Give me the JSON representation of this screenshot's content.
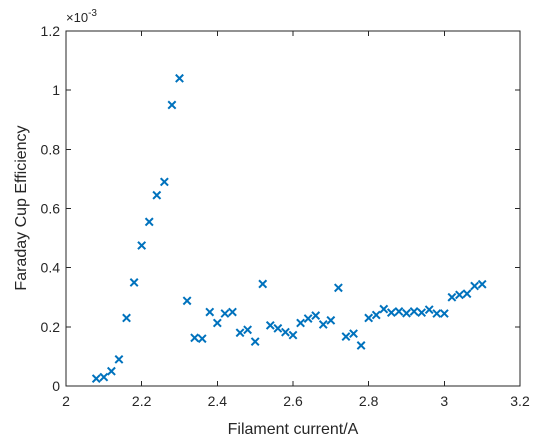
{
  "chart_data": {
    "type": "scatter",
    "title": "",
    "xlabel": "Filament current/A",
    "ylabel": "Faraday Cup Efficiency",
    "y_multiplier_base": "×10",
    "y_multiplier_exponent": "-3",
    "xlim": [
      2,
      3.2
    ],
    "ylim": [
      0,
      1.2
    ],
    "x_ticks": [
      2,
      2.2,
      2.4,
      2.6,
      2.8,
      3,
      3.2
    ],
    "x_tick_labels": [
      "2",
      "2.2",
      "2.4",
      "2.6",
      "2.8",
      "3",
      "3.2"
    ],
    "y_ticks": [
      0,
      0.2,
      0.4,
      0.6,
      0.8,
      1,
      1.2
    ],
    "y_tick_labels": [
      "0",
      "0.2",
      "0.4",
      "0.6",
      "0.8",
      "1",
      "1.2"
    ],
    "grid": false,
    "legend": "none",
    "marker": "x",
    "color": "#0072BD",
    "series": [
      {
        "x": [
          2.08,
          2.1,
          2.12,
          2.14,
          2.16,
          2.18,
          2.2,
          2.22,
          2.24,
          2.26,
          2.28,
          2.3,
          2.32,
          2.34,
          2.36,
          2.38,
          2.4,
          2.42,
          2.44,
          2.46,
          2.48,
          2.5,
          2.52,
          2.54,
          2.56,
          2.58,
          2.6,
          2.62,
          2.64,
          2.66,
          2.68,
          2.7,
          2.72,
          2.74,
          2.76,
          2.78,
          2.8,
          2.82,
          2.84,
          2.86,
          2.88,
          2.9,
          2.92,
          2.94,
          2.96,
          2.98,
          3.0,
          3.02,
          3.04,
          3.06,
          3.08,
          3.1
        ],
        "y": [
          0.025,
          0.03,
          0.05,
          0.09,
          0.23,
          0.35,
          0.475,
          0.555,
          0.645,
          0.69,
          0.95,
          1.04,
          0.288,
          0.163,
          0.16,
          0.25,
          0.213,
          0.245,
          0.25,
          0.18,
          0.19,
          0.15,
          0.345,
          0.205,
          0.195,
          0.182,
          0.172,
          0.213,
          0.228,
          0.238,
          0.208,
          0.222,
          0.332,
          0.167,
          0.177,
          0.137,
          0.23,
          0.24,
          0.26,
          0.248,
          0.252,
          0.246,
          0.252,
          0.248,
          0.258,
          0.245,
          0.245,
          0.3,
          0.308,
          0.312,
          0.338,
          0.344
        ]
      }
    ]
  }
}
